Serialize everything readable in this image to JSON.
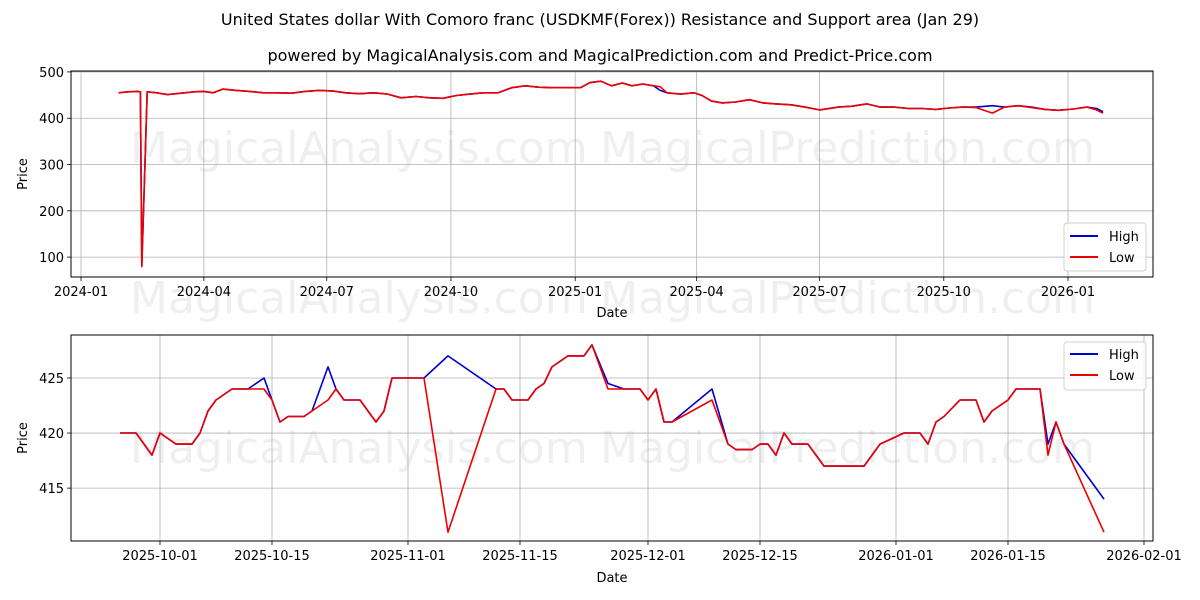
{
  "title": "United States dollar With Comoro franc (USDKMF(Forex)) Resistance and Support area (Jan 29)",
  "subtitle": "powered by MagicalAnalysis.com and MagicalPrediction.com and Predict-Price.com",
  "watermarks": [
    "MagicalAnalysis.com",
    "MagicalPrediction.com"
  ],
  "colors": {
    "high": "#0000cc",
    "low": "#ee0000",
    "grid": "#b0b0b0"
  },
  "chart_data": [
    {
      "type": "line",
      "title": "Full history",
      "xlabel": "Date",
      "ylabel": "Price",
      "ylim": [
        57,
        502
      ],
      "xticks": [
        "2024-01",
        "2024-04",
        "2024-07",
        "2024-10",
        "2025-01",
        "2025-04",
        "2025-07",
        "2025-10",
        "2026-01"
      ],
      "yticks": [
        100,
        200,
        300,
        400,
        500
      ],
      "grid": true,
      "legend": {
        "entries": [
          "High",
          "Low"
        ],
        "position": "lower right"
      },
      "x": [
        "2024-01-29",
        "2024-02-05",
        "2024-02-12",
        "2024-02-14",
        "2024-02-15",
        "2024-02-19",
        "2024-02-26",
        "2024-03-05",
        "2024-03-15",
        "2024-03-25",
        "2024-04-01",
        "2024-04-08",
        "2024-04-15",
        "2024-04-25",
        "2024-05-05",
        "2024-05-15",
        "2024-05-25",
        "2024-06-05",
        "2024-06-15",
        "2024-06-25",
        "2024-07-05",
        "2024-07-15",
        "2024-07-25",
        "2024-08-05",
        "2024-08-15",
        "2024-08-25",
        "2024-09-05",
        "2024-09-15",
        "2024-09-25",
        "2024-10-05",
        "2024-10-15",
        "2024-10-25",
        "2024-11-05",
        "2024-11-15",
        "2024-11-25",
        "2024-12-05",
        "2024-12-15",
        "2024-12-25",
        "2025-01-05",
        "2025-01-12",
        "2025-01-20",
        "2025-01-28",
        "2025-02-05",
        "2025-02-12",
        "2025-02-20",
        "2025-02-28",
        "2025-03-05",
        "2025-03-10",
        "2025-03-20",
        "2025-03-30",
        "2025-04-05",
        "2025-04-12",
        "2025-04-20",
        "2025-04-30",
        "2025-05-10",
        "2025-05-20",
        "2025-05-30",
        "2025-06-10",
        "2025-06-20",
        "2025-07-01",
        "2025-07-15",
        "2025-07-25",
        "2025-08-05",
        "2025-08-15",
        "2025-08-25",
        "2025-09-05",
        "2025-09-15",
        "2025-09-25",
        "2025-10-05",
        "2025-10-15",
        "2025-10-25",
        "2025-11-06",
        "2025-11-15",
        "2025-11-25",
        "2025-12-05",
        "2025-12-15",
        "2025-12-25",
        "2026-01-05",
        "2026-01-15",
        "2026-01-22",
        "2026-01-27"
      ],
      "series": [
        {
          "name": "High",
          "values": [
            455,
            457,
            458,
            457,
            80,
            457,
            455,
            451,
            454,
            457,
            458,
            455,
            463,
            460,
            458,
            455,
            455,
            454,
            458,
            460,
            459,
            455,
            453,
            455,
            452,
            444,
            447,
            444,
            443,
            449,
            452,
            455,
            455,
            466,
            470,
            467,
            466,
            466,
            466,
            477,
            480,
            470,
            476,
            470,
            474,
            470,
            460,
            455,
            452,
            455,
            449,
            437,
            433,
            435,
            440,
            433,
            431,
            429,
            424,
            418,
            424,
            426,
            431,
            424,
            424,
            421,
            421,
            419,
            422,
            424,
            424,
            427,
            424,
            427,
            424,
            419,
            417,
            420,
            424,
            421,
            414
          ]
        },
        {
          "name": "Low",
          "values": [
            455,
            457,
            458,
            457,
            80,
            457,
            455,
            451,
            454,
            457,
            458,
            455,
            463,
            460,
            458,
            455,
            455,
            454,
            458,
            460,
            459,
            455,
            453,
            455,
            452,
            444,
            447,
            444,
            443,
            449,
            452,
            455,
            455,
            466,
            470,
            467,
            466,
            466,
            466,
            477,
            480,
            470,
            476,
            470,
            474,
            470,
            468,
            455,
            452,
            455,
            449,
            437,
            433,
            435,
            440,
            433,
            431,
            429,
            424,
            418,
            424,
            426,
            431,
            424,
            424,
            421,
            421,
            419,
            422,
            424,
            423,
            411,
            424,
            427,
            423,
            419,
            417,
            420,
            424,
            418,
            411
          ]
        }
      ]
    },
    {
      "type": "line",
      "title": "Recent detail",
      "xlabel": "Date",
      "ylabel": "Price",
      "ylim": [
        410.2,
        428.9
      ],
      "xticks": [
        "2025-10-01",
        "2025-10-15",
        "2025-11-01",
        "2025-11-15",
        "2025-12-01",
        "2025-12-15",
        "2026-01-01",
        "2026-01-15",
        "2026-02-01"
      ],
      "yticks": [
        415,
        420,
        425
      ],
      "grid": true,
      "legend": {
        "entries": [
          "High",
          "Low"
        ],
        "position": "upper right"
      },
      "x": [
        "2025-09-26",
        "2025-09-28",
        "2025-09-30",
        "2025-10-01",
        "2025-10-03",
        "2025-10-05",
        "2025-10-06",
        "2025-10-07",
        "2025-10-08",
        "2025-10-10",
        "2025-10-12",
        "2025-10-14",
        "2025-10-15",
        "2025-10-16",
        "2025-10-17",
        "2025-10-19",
        "2025-10-20",
        "2025-10-22",
        "2025-10-23",
        "2025-10-24",
        "2025-10-26",
        "2025-10-28",
        "2025-10-29",
        "2025-10-30",
        "2025-11-03",
        "2025-11-06",
        "2025-11-12",
        "2025-11-13",
        "2025-11-14",
        "2025-11-16",
        "2025-11-17",
        "2025-11-18",
        "2025-11-19",
        "2025-11-21",
        "2025-11-23",
        "2025-11-24",
        "2025-11-26",
        "2025-11-28",
        "2025-11-30",
        "2025-12-01",
        "2025-12-02",
        "2025-12-03",
        "2025-12-04",
        "2025-12-09",
        "2025-12-11",
        "2025-12-12",
        "2025-12-14",
        "2025-12-15",
        "2025-12-16",
        "2025-12-17",
        "2025-12-18",
        "2025-12-19",
        "2025-12-21",
        "2025-12-23",
        "2025-12-28",
        "2025-12-30",
        "2026-01-02",
        "2026-01-04",
        "2026-01-05",
        "2026-01-06",
        "2026-01-07",
        "2026-01-09",
        "2026-01-11",
        "2026-01-12",
        "2026-01-13",
        "2026-01-15",
        "2026-01-16",
        "2026-01-19",
        "2026-01-20",
        "2026-01-21",
        "2026-01-22",
        "2026-01-27"
      ],
      "series": [
        {
          "name": "High",
          "values": [
            420,
            420,
            418,
            420,
            419,
            419,
            420,
            422,
            423,
            424,
            424,
            425,
            423,
            421,
            421.5,
            421.5,
            422,
            426,
            424,
            423,
            423,
            421,
            422,
            425,
            425,
            427,
            424,
            424,
            423,
            423,
            424,
            424.5,
            426,
            427,
            427,
            428,
            424.5,
            424,
            424,
            423,
            424,
            421,
            421,
            424,
            419,
            418.5,
            418.5,
            419,
            419,
            418,
            420,
            419,
            419,
            417,
            417,
            419,
            420,
            420,
            419,
            421,
            421.5,
            423,
            423,
            421,
            422,
            423,
            424,
            424,
            419,
            421,
            419,
            414
          ]
        },
        {
          "name": "Low",
          "values": [
            420,
            420,
            418,
            420,
            419,
            419,
            420,
            422,
            423,
            424,
            424,
            424,
            423,
            421,
            421.5,
            421.5,
            422,
            423,
            424,
            423,
            423,
            421,
            422,
            425,
            425,
            411,
            424,
            424,
            423,
            423,
            424,
            424.5,
            426,
            427,
            427,
            428,
            424,
            424,
            424,
            423,
            424,
            421,
            421,
            423,
            419,
            418.5,
            418.5,
            419,
            419,
            418,
            420,
            419,
            419,
            417,
            417,
            419,
            420,
            420,
            419,
            421,
            421.5,
            423,
            423,
            421,
            422,
            423,
            424,
            424,
            418,
            421,
            419,
            411
          ]
        }
      ]
    }
  ],
  "legend": {
    "high_label": "High",
    "low_label": "Low"
  }
}
